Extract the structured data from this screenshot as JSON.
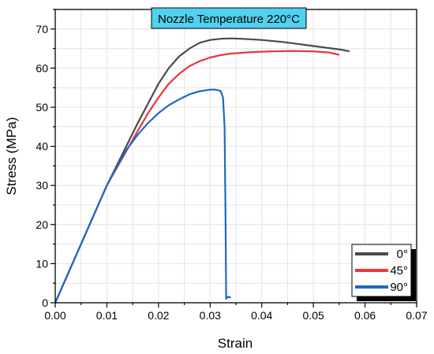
{
  "chart_data": {
    "type": "line",
    "title": "Nozzle Temperature 220°C",
    "xlabel": "Strain",
    "ylabel": "Stress (MPa)",
    "xlim": [
      0,
      0.07
    ],
    "ylim": [
      0,
      75
    ],
    "xticks": [
      "0.00",
      "0.01",
      "0.02",
      "0.03",
      "0.04",
      "0.05",
      "0.06",
      "0.07"
    ],
    "yticks": [
      "0",
      "10",
      "20",
      "30",
      "40",
      "50",
      "60",
      "70"
    ],
    "grid": true,
    "legend": "bottom-right",
    "colors": {
      "title_bg": "#4fd1ef",
      "grid": "#e4e4e4"
    },
    "series": [
      {
        "name": "0°",
        "color": "#4a4a4a",
        "x": [
          0,
          0.005,
          0.01,
          0.013,
          0.016,
          0.018,
          0.02,
          0.022,
          0.024,
          0.026,
          0.028,
          0.03,
          0.032,
          0.034,
          0.036,
          0.04,
          0.044,
          0.048,
          0.052,
          0.055,
          0.057
        ],
        "y": [
          0,
          15,
          30,
          38,
          46,
          51,
          56,
          60,
          63,
          65,
          66.5,
          67.2,
          67.5,
          67.6,
          67.5,
          67.2,
          66.7,
          66.0,
          65.3,
          64.8,
          64.3
        ]
      },
      {
        "name": "45°",
        "color": "#e8373b",
        "x": [
          0,
          0.005,
          0.01,
          0.013,
          0.016,
          0.018,
          0.02,
          0.022,
          0.024,
          0.026,
          0.028,
          0.03,
          0.032,
          0.034,
          0.038,
          0.042,
          0.046,
          0.05,
          0.053,
          0.055
        ],
        "y": [
          0,
          15,
          30,
          37,
          44,
          48.5,
          52.5,
          56,
          58.5,
          60.5,
          61.8,
          62.7,
          63.3,
          63.7,
          64.1,
          64.3,
          64.4,
          64.3,
          64.0,
          63.4
        ]
      },
      {
        "name": "90°",
        "color": "#1f68c8",
        "x": [
          0,
          0.005,
          0.01,
          0.012,
          0.014,
          0.016,
          0.018,
          0.02,
          0.022,
          0.024,
          0.026,
          0.028,
          0.03,
          0.031,
          0.032,
          0.0325,
          0.0328,
          0.033,
          0.0331,
          0.0332,
          0.0334,
          0.034
        ],
        "y": [
          0,
          15,
          30,
          35,
          39.5,
          43,
          46,
          48.5,
          50.5,
          52,
          53.3,
          54.1,
          54.5,
          54.5,
          54.2,
          52.5,
          45,
          20,
          1,
          1.2,
          1.5,
          1.4
        ]
      }
    ]
  }
}
